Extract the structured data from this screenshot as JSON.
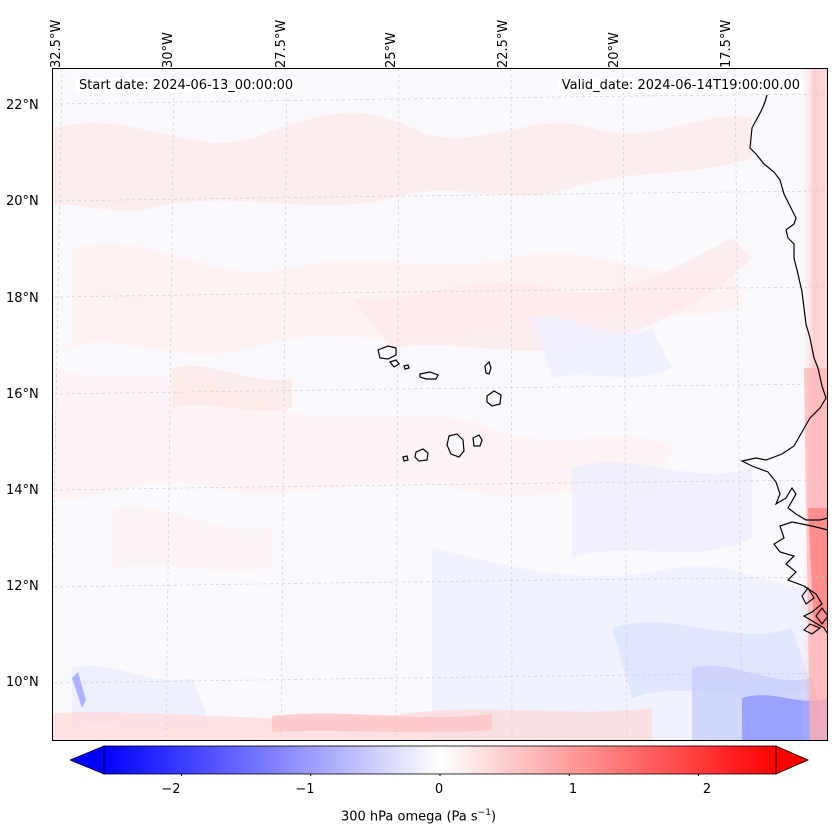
{
  "map": {
    "variable": "300 hPa omega",
    "region_hint": "Cape Verde / West Africa coast",
    "start_date_label": "Start date: 2024-06-13_00:00:00",
    "valid_date_label": "Valid_date: 2024-06-14T19:00:00.00",
    "lon_labels": [
      "32.5°W",
      "30°W",
      "27.5°W",
      "25°W",
      "22.5°W",
      "20°W",
      "17.5°W"
    ],
    "lat_labels": [
      "22°N",
      "20°N",
      "18°N",
      "16°N",
      "14°N",
      "12°N",
      "10°N"
    ]
  },
  "colorbar": {
    "tick_labels": [
      "−2",
      "−1",
      "0",
      "1",
      "2"
    ],
    "range": [
      -2.6,
      2.6
    ],
    "title": "300 hPa omega (Pa s",
    "title_exp": "−1",
    "title_close": ")",
    "low_color": "#0000ff",
    "mid_color": "#ffffff",
    "high_color": "#ff0000"
  }
}
